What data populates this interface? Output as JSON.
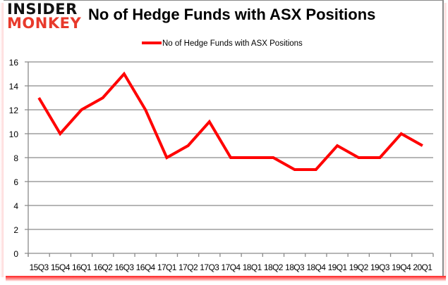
{
  "logo": {
    "line1": "INSIDER",
    "line2": "MONKEY"
  },
  "title": "No of Hedge Funds with ASX Positions",
  "colors": {
    "series": "#ff0000",
    "grid": "#8a8a8a",
    "logo_dark": "#111111",
    "logo_red": "#e8392b"
  },
  "chart_data": {
    "type": "line",
    "title": "No of Hedge Funds with ASX Positions",
    "xlabel": "",
    "ylabel": "",
    "categories": [
      "15Q3",
      "15Q4",
      "16Q1",
      "16Q2",
      "16Q3",
      "16Q4",
      "17Q1",
      "17Q2",
      "17Q3",
      "17Q4",
      "18Q1",
      "18Q2",
      "18Q3",
      "18Q4",
      "19Q1",
      "19Q2",
      "19Q3",
      "19Q4",
      "20Q1"
    ],
    "series": [
      {
        "name": "No of Hedge Funds with ASX Positions",
        "color": "#ff0000",
        "values": [
          13,
          10,
          12,
          13,
          15,
          12,
          8,
          9,
          11,
          8,
          8,
          8,
          7,
          7,
          9,
          8,
          8,
          10,
          9
        ]
      }
    ],
    "ylim": [
      0,
      16
    ],
    "yticks": [
      0,
      2,
      4,
      6,
      8,
      10,
      12,
      14,
      16
    ],
    "grid": true,
    "legend_position": "top"
  }
}
